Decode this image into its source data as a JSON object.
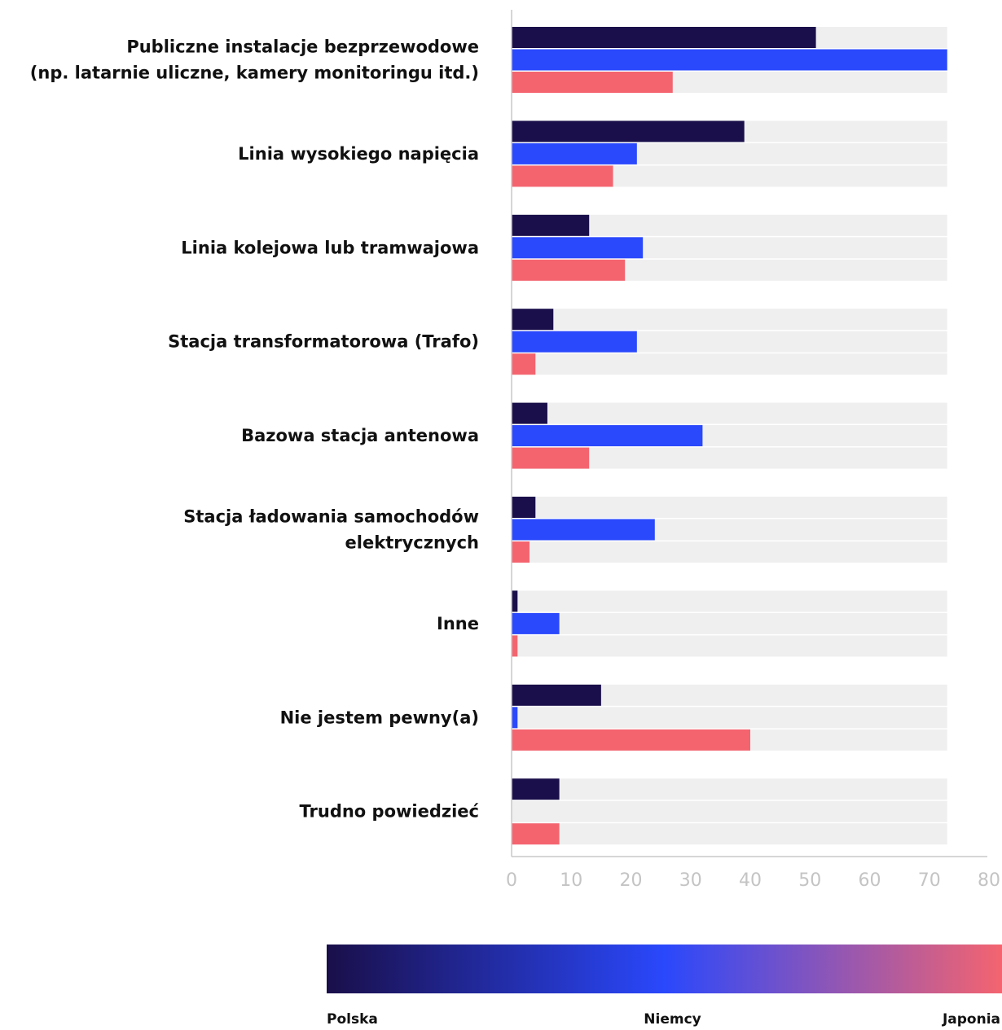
{
  "chart_data": {
    "type": "bar",
    "orientation": "horizontal",
    "categories": [
      [
        "Publiczne instalacje bezprzewodowe",
        "(np. latarnie uliczne, kamery monitoringu itd.)"
      ],
      [
        "Linia wysokiego napięcia"
      ],
      [
        "Linia kolejowa lub tramwajowa"
      ],
      [
        "Stacja transformatorowa (Trafo)"
      ],
      [
        "Bazowa stacja antenowa"
      ],
      [
        "Stacja ładowania samochodów",
        "elektrycznych"
      ],
      [
        "Inne"
      ],
      [
        "Nie jestem pewny(a)"
      ],
      [
        "Trudno powiedzieć"
      ]
    ],
    "series": [
      {
        "name": "Polska",
        "color": "#1a0f4a",
        "values": [
          51,
          39,
          13,
          7,
          6,
          4,
          1,
          15,
          8
        ]
      },
      {
        "name": "Niemcy",
        "color": "#2a48fc",
        "values": [
          73,
          21,
          22,
          21,
          32,
          24,
          8,
          1,
          null
        ]
      },
      {
        "name": "Japonia",
        "color": "#f4646f",
        "values": [
          27,
          17,
          19,
          4,
          13,
          3,
          1,
          40,
          8
        ]
      }
    ],
    "background_bar_value": 73,
    "background_bar_color": "#efefef",
    "xlim": [
      0,
      80
    ],
    "xticks": [
      0,
      10,
      20,
      30,
      40,
      50,
      60,
      70,
      80
    ],
    "grid": false,
    "legend": {
      "type": "gradient",
      "placement": "bottom",
      "labels": [
        "Polska",
        "Niemcy",
        "Japonia"
      ],
      "colors": [
        "#1a0f4a",
        "#2a48fc",
        "#f4646f"
      ]
    }
  }
}
